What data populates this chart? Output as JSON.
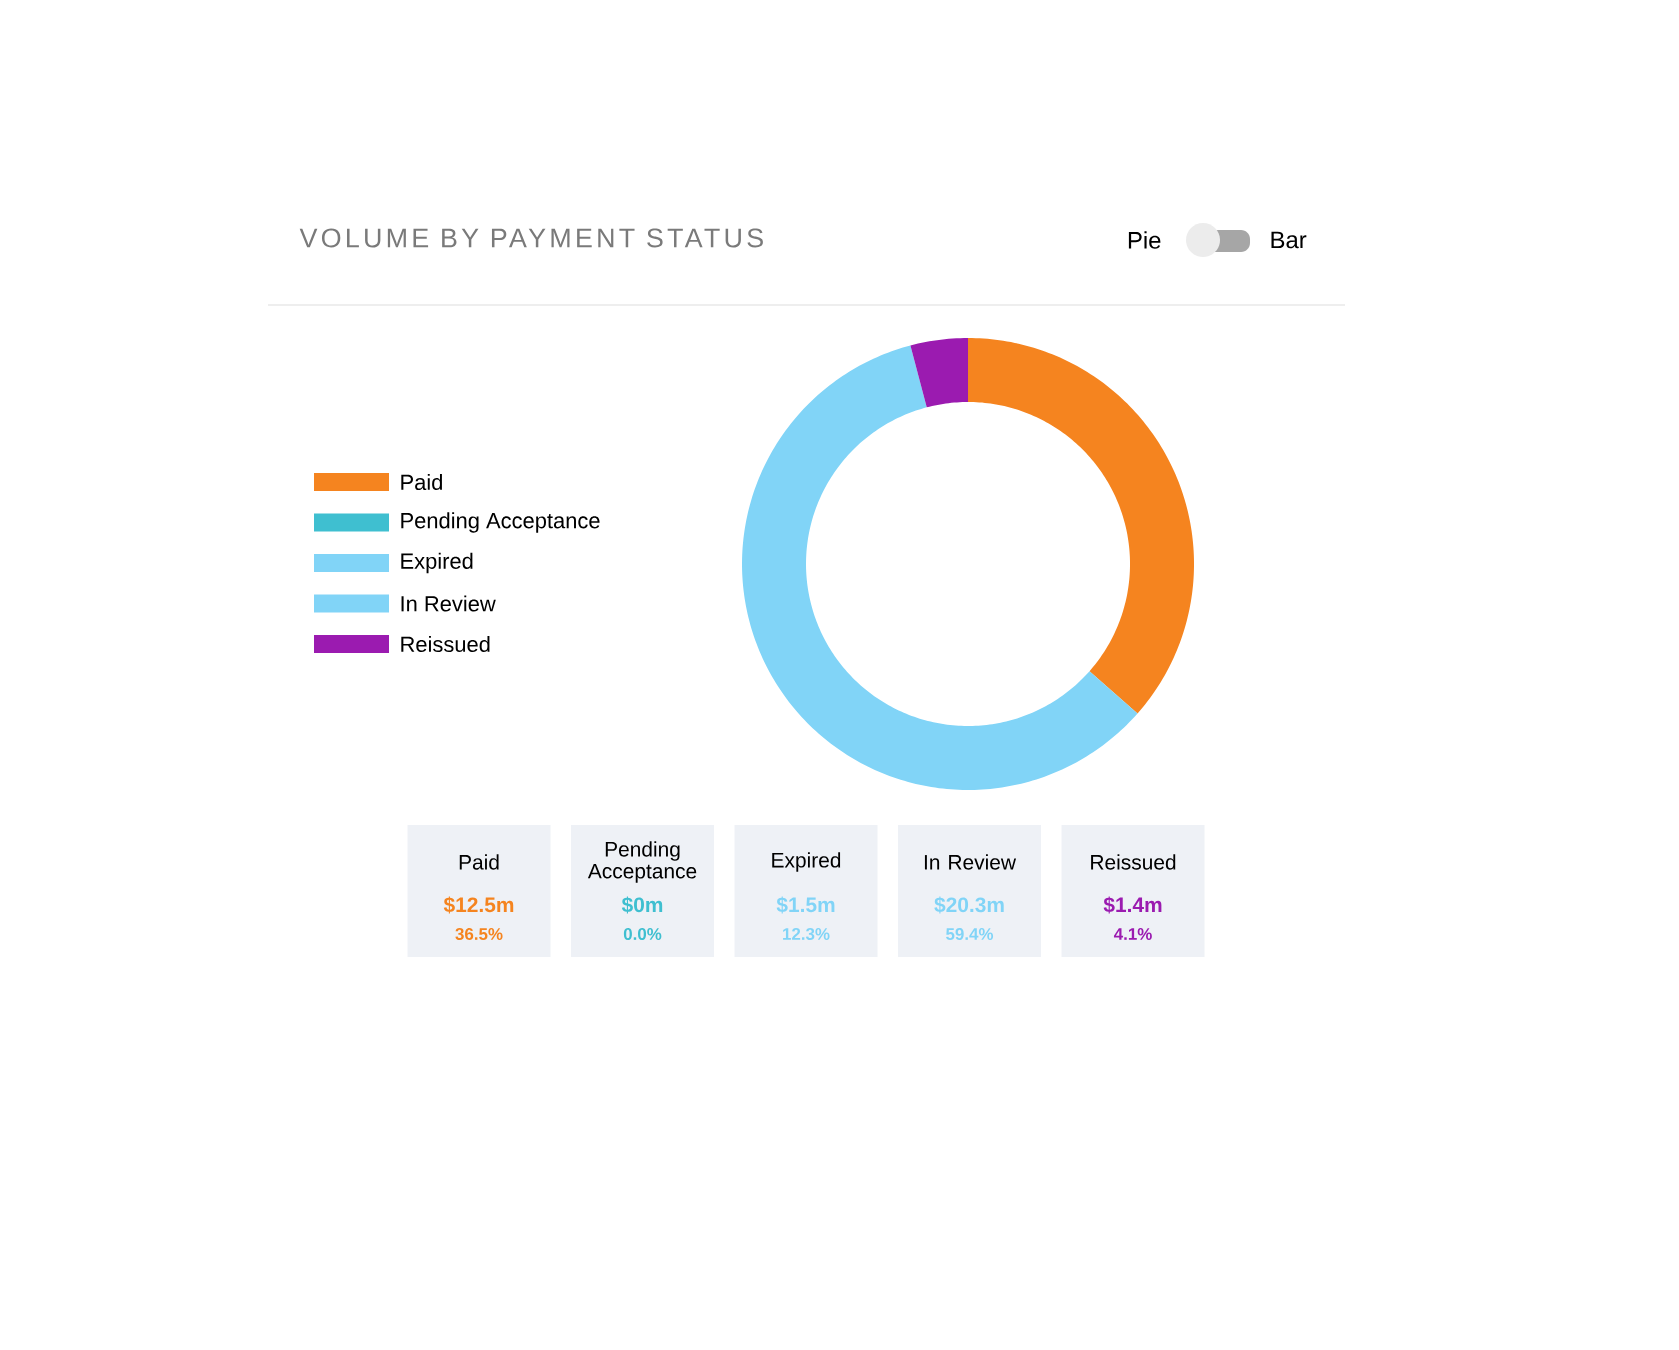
{
  "chart_data": {
    "type": "donut",
    "title": "VOLUME BY PAYMENT STATUS",
    "categories": [
      "Paid",
      "Pending Acceptance",
      "Expired",
      "In Review",
      "Reissued"
    ],
    "values": [
      36.5,
      0,
      null,
      59.4,
      4.1
    ],
    "colors": [
      "#f5841f",
      "#3fbfd0",
      "#81d4f7",
      "#81d4f7",
      "#9b1bb0"
    ],
    "annotations": [
      "$12.5m",
      "$0m",
      "$1.5m",
      "$20.3m",
      "$1.4m",
      "36.5%",
      "0.0%",
      "12.3%",
      "59.4%",
      "4.1%",
      "Pie",
      "Bar"
    ],
    "legend": "left"
  }
}
